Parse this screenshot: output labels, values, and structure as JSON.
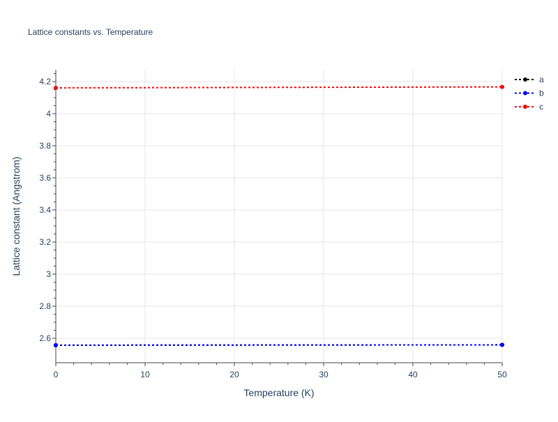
{
  "chart_data": {
    "type": "line",
    "title": "Lattice constants vs. Temperature",
    "xlabel": "Temperature (K)",
    "ylabel": "Lattice constant (Angstrom)",
    "xlim": [
      0,
      50
    ],
    "ylim": [
      2.525,
      4.275
    ],
    "xticks": [
      0,
      10,
      20,
      30,
      40,
      50
    ],
    "xtick_labels": [
      "0",
      "10",
      "20",
      "30",
      "40",
      "50"
    ],
    "yticks": [
      2.6,
      2.8,
      3.0,
      3.2,
      3.4,
      3.6,
      3.8,
      4.0,
      4.2
    ],
    "ytick_labels": [
      "2.6",
      "2.8",
      "3",
      "3.2",
      "3.4",
      "3.6",
      "3.8",
      "4",
      "4.2"
    ],
    "grid": true,
    "legend_position": "top-right",
    "series": [
      {
        "name": "a",
        "color": "#000000",
        "x": [
          0,
          50
        ],
        "y": [
          2.557,
          2.559
        ]
      },
      {
        "name": "b",
        "color": "#0000ff",
        "x": [
          0,
          50
        ],
        "y": [
          2.557,
          2.559
        ]
      },
      {
        "name": "c",
        "color": "#ff0000",
        "x": [
          0,
          50
        ],
        "y": [
          4.161,
          4.167
        ]
      }
    ]
  }
}
